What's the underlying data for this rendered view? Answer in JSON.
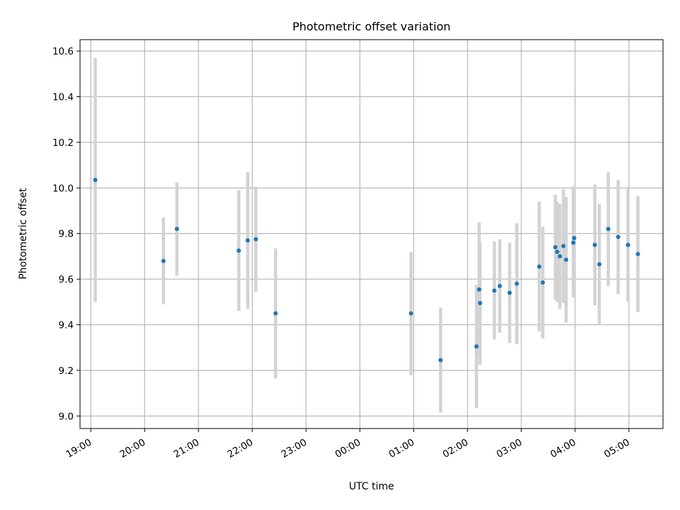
{
  "chart_data": {
    "type": "scatter",
    "title": "Photometric offset variation",
    "xlabel": "UTC time",
    "ylabel": "Photometric offset",
    "x_axis_type": "time",
    "xlim": [
      "18:48",
      "05:38"
    ],
    "ylim": [
      8.945,
      10.65
    ],
    "xticks": [
      "19:00",
      "20:00",
      "21:00",
      "22:00",
      "23:00",
      "00:00",
      "01:00",
      "02:00",
      "03:00",
      "04:00",
      "05:00"
    ],
    "yticks": [
      "9.0",
      "9.2",
      "9.4",
      "9.6",
      "9.8",
      "10.0",
      "10.2",
      "10.4",
      "10.6"
    ],
    "grid": true,
    "point_color": "#1f77b4",
    "errorbar_color": "#d3d3d3",
    "points": [
      {
        "x": "19:05",
        "y": 10.035,
        "err": 0.535
      },
      {
        "x": "20:21",
        "y": 9.68,
        "err": 0.19
      },
      {
        "x": "20:36",
        "y": 9.82,
        "err": 0.205
      },
      {
        "x": "21:45",
        "y": 9.725,
        "err": 0.265
      },
      {
        "x": "21:55",
        "y": 9.77,
        "err": 0.3
      },
      {
        "x": "22:04",
        "y": 9.775,
        "err": 0.23
      },
      {
        "x": "22:26",
        "y": 9.45,
        "err": 0.285
      },
      {
        "x": "00:57",
        "y": 9.45,
        "err": 0.27
      },
      {
        "x": "01:30",
        "y": 9.245,
        "err": 0.23
      },
      {
        "x": "02:10",
        "y": 9.305,
        "err": 0.27
      },
      {
        "x": "02:13",
        "y": 9.555,
        "err": 0.295
      },
      {
        "x": "02:14",
        "y": 9.495,
        "err": 0.27
      },
      {
        "x": "02:30",
        "y": 9.55,
        "err": 0.215
      },
      {
        "x": "02:36",
        "y": 9.57,
        "err": 0.205
      },
      {
        "x": "02:47",
        "y": 9.54,
        "err": 0.22
      },
      {
        "x": "02:55",
        "y": 9.58,
        "err": 0.265
      },
      {
        "x": "03:20",
        "y": 9.655,
        "err": 0.285
      },
      {
        "x": "03:24",
        "y": 9.585,
        "err": 0.245
      },
      {
        "x": "03:38",
        "y": 9.74,
        "err": 0.23
      },
      {
        "x": "03:40",
        "y": 9.72,
        "err": 0.22
      },
      {
        "x": "03:43",
        "y": 9.7,
        "err": 0.23
      },
      {
        "x": "03:47",
        "y": 9.745,
        "err": 0.25
      },
      {
        "x": "03:50",
        "y": 9.685,
        "err": 0.275
      },
      {
        "x": "03:58",
        "y": 9.76,
        "err": 0.24
      },
      {
        "x": "03:59",
        "y": 9.78,
        "err": 0.23
      },
      {
        "x": "04:22",
        "y": 9.75,
        "err": 0.265
      },
      {
        "x": "04:27",
        "y": 9.665,
        "err": 0.265
      },
      {
        "x": "04:37",
        "y": 9.82,
        "err": 0.25
      },
      {
        "x": "04:48",
        "y": 9.785,
        "err": 0.25
      },
      {
        "x": "04:59",
        "y": 9.75,
        "err": 0.25
      },
      {
        "x": "05:10",
        "y": 9.71,
        "err": 0.255
      }
    ]
  }
}
